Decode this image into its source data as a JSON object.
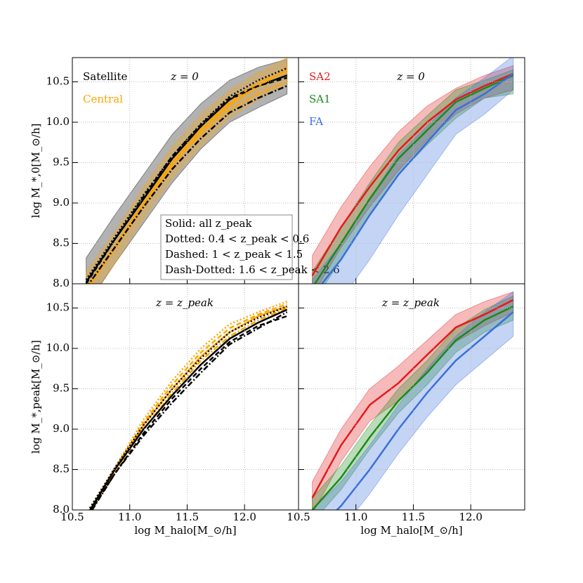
{
  "chart_data": [
    {
      "type": "line",
      "annotation": "z = 0",
      "ylabel": "log M_*,0[M_⊙/h]",
      "xlim": [
        10.5,
        12.47
      ],
      "ylim": [
        8.0,
        10.8
      ],
      "xticks": [
        10.5,
        {
          "value": 11,
          "label": "11.0"
        },
        11.5,
        {
          "value": 12,
          "label": "12.0"
        }
      ],
      "xtick_labels": false,
      "yticks": [
        {
          "value": 8,
          "label": "8.0"
        },
        8.5,
        {
          "value": 9,
          "label": "9.0"
        },
        9.5,
        {
          "value": 10,
          "label": "10.0"
        },
        10.5
      ],
      "grid": true,
      "x": [
        10.62,
        10.87,
        11.12,
        11.37,
        11.62,
        11.87,
        12.12,
        12.37
      ],
      "style_legend": [
        "Solid: all z_peak",
        "Dotted: 0.4 < z_peak < 0.6",
        "Dashed: 1 < z_peak < 1.5",
        "Dash-Dotted: 1.6 < z_peak < 2.6"
      ],
      "series": [
        {
          "name": "Satellite",
          "color": "#000000",
          "linestyle": "solid",
          "values": [
            8.02,
            8.55,
            9.05,
            9.55,
            9.95,
            10.28,
            10.45,
            10.58
          ],
          "lower": [
            7.72,
            8.25,
            8.75,
            9.25,
            9.67,
            10.0,
            10.18,
            10.35
          ],
          "upper": [
            8.32,
            8.85,
            9.35,
            9.85,
            10.23,
            10.52,
            10.68,
            10.78
          ]
        },
        {
          "name": "Central",
          "color": "#ffa500",
          "linestyle": "solid",
          "values": [
            7.95,
            8.45,
            9.0,
            9.5,
            9.9,
            10.22,
            10.45,
            10.65
          ],
          "lower": [
            7.75,
            8.25,
            8.8,
            9.3,
            9.7,
            10.05,
            10.28,
            10.48
          ],
          "upper": [
            8.15,
            8.65,
            9.2,
            9.7,
            10.1,
            10.4,
            10.62,
            10.8
          ]
        },
        {
          "color": "#ffa500",
          "linestyle": "dotted",
          "values": [
            7.9,
            8.42,
            8.95,
            9.45,
            9.88,
            10.2,
            10.48,
            10.7
          ]
        },
        {
          "color": "#ffa500",
          "linestyle": "dashed",
          "values": [
            7.93,
            8.47,
            9.0,
            9.5,
            9.92,
            10.25,
            10.5,
            10.62
          ]
        },
        {
          "color": "#ffa500",
          "linestyle": "dashdot",
          "values": [
            7.95,
            8.45,
            8.98,
            9.47,
            9.85,
            10.15,
            10.35,
            10.5
          ]
        },
        {
          "color": "#000000",
          "linestyle": "dotted",
          "values": [
            8.05,
            8.58,
            9.1,
            9.58,
            9.98,
            10.32,
            10.52,
            10.67
          ]
        },
        {
          "color": "#000000",
          "linestyle": "dashed",
          "values": [
            8.0,
            8.55,
            9.08,
            9.58,
            9.97,
            10.3,
            10.45,
            10.55
          ]
        },
        {
          "color": "#000000",
          "linestyle": "dashdot",
          "values": [
            7.95,
            8.45,
            8.95,
            9.42,
            9.8,
            10.12,
            10.3,
            10.45
          ]
        }
      ]
    },
    {
      "type": "line",
      "annotation": "z = 0",
      "xlim": [
        10.5,
        12.47
      ],
      "ylim": [
        8.0,
        10.8
      ],
      "xticks": [
        10.5,
        {
          "value": 11,
          "label": "11.0"
        },
        11.5,
        {
          "value": 12,
          "label": "12.0"
        }
      ],
      "xtick_labels": false,
      "yticks": [
        8,
        8.5,
        9,
        9.5,
        10,
        10.5
      ],
      "ytick_labels": false,
      "grid": true,
      "x": [
        10.62,
        10.87,
        11.12,
        11.37,
        11.62,
        11.87,
        12.12,
        12.37
      ],
      "series": [
        {
          "name": "SA2",
          "color": "#e41a1c",
          "linestyle": "solid",
          "values": [
            8.1,
            8.7,
            9.2,
            9.65,
            10.0,
            10.28,
            10.45,
            10.6
          ],
          "lower": [
            7.85,
            8.45,
            8.95,
            9.4,
            9.78,
            10.1,
            10.3,
            10.4
          ],
          "upper": [
            8.35,
            8.95,
            9.45,
            9.88,
            10.2,
            10.42,
            10.58,
            10.7
          ]
        },
        {
          "name": "SA1",
          "color": "#1a8a1a",
          "linestyle": "solid",
          "values": [
            7.95,
            8.5,
            9.05,
            9.55,
            9.9,
            10.25,
            10.42,
            10.58
          ],
          "lower": [
            7.75,
            8.3,
            8.85,
            9.35,
            9.72,
            10.05,
            10.3,
            10.35
          ],
          "upper": [
            8.15,
            8.7,
            9.25,
            9.75,
            10.08,
            10.4,
            10.52,
            10.65
          ]
        },
        {
          "name": "FA",
          "color": "#3a6fdc",
          "linestyle": "solid",
          "values": [
            7.85,
            8.3,
            8.85,
            9.35,
            9.75,
            10.15,
            10.35,
            10.6
          ],
          "lower": [
            7.4,
            7.8,
            8.3,
            8.85,
            9.35,
            9.85,
            10.1,
            10.4
          ],
          "upper": [
            8.05,
            8.5,
            9.05,
            9.6,
            9.95,
            10.3,
            10.55,
            10.82
          ]
        }
      ]
    },
    {
      "type": "line",
      "annotation": "z = z_peak",
      "ylabel": "log M_*,peak[M_⊙/h]",
      "xlabel": "log M_halo[M_⊙/h]",
      "xlim": [
        10.5,
        12.47
      ],
      "ylim": [
        8.0,
        10.8
      ],
      "xticks": [
        10.5,
        {
          "value": 11,
          "label": "11.0"
        },
        11.5,
        {
          "value": 12,
          "label": "12.0"
        }
      ],
      "yticks": [
        {
          "value": 8,
          "label": "8.0"
        },
        8.5,
        {
          "value": 9,
          "label": "9.0"
        },
        9.5,
        {
          "value": 10,
          "label": "10.0"
        },
        10.5
      ],
      "grid": true,
      "x": [
        10.62,
        10.87,
        11.12,
        11.37,
        11.62,
        11.87,
        12.12,
        12.37
      ],
      "series": [
        {
          "color": "#ffa500",
          "linestyle": "solid",
          "values": [
            7.9,
            8.5,
            9.05,
            9.5,
            9.9,
            10.2,
            10.4,
            10.52
          ]
        },
        {
          "color": "#ffa500",
          "linestyle": "dotted",
          "values": [
            7.92,
            8.52,
            9.12,
            9.6,
            10.0,
            10.3,
            10.45,
            10.58
          ]
        },
        {
          "color": "#ffa500",
          "linestyle": "dashed",
          "values": [
            7.9,
            8.5,
            9.08,
            9.55,
            9.95,
            10.25,
            10.42,
            10.55
          ]
        },
        {
          "color": "#ffa500",
          "linestyle": "dashdot",
          "values": [
            7.88,
            8.48,
            9.0,
            9.45,
            9.85,
            10.15,
            10.35,
            10.5
          ]
        },
        {
          "color": "#000000",
          "linestyle": "solid",
          "values": [
            7.92,
            8.5,
            9.0,
            9.42,
            9.8,
            10.12,
            10.32,
            10.48
          ]
        },
        {
          "color": "#000000",
          "linestyle": "dotted",
          "values": [
            7.95,
            8.52,
            9.05,
            9.5,
            9.88,
            10.2,
            10.38,
            10.52
          ]
        },
        {
          "color": "#000000",
          "linestyle": "dashed",
          "values": [
            7.9,
            8.45,
            8.95,
            9.38,
            9.75,
            10.08,
            10.28,
            10.4
          ]
        },
        {
          "color": "#000000",
          "linestyle": "dashdot",
          "values": [
            7.88,
            8.45,
            8.92,
            9.33,
            9.7,
            10.05,
            10.25,
            10.45
          ]
        }
      ]
    },
    {
      "type": "line",
      "annotation": "z = z_peak",
      "xlabel": "log M_halo[M_⊙/h]",
      "xlim": [
        10.5,
        12.47
      ],
      "ylim": [
        8.0,
        10.8
      ],
      "xticks": [
        10.5,
        {
          "value": 11,
          "label": "11.0"
        },
        11.5,
        {
          "value": 12,
          "label": "12.0"
        }
      ],
      "yticks": [
        8,
        8.5,
        9,
        9.5,
        10,
        10.5
      ],
      "ytick_labels": false,
      "grid": true,
      "x": [
        10.62,
        10.87,
        11.12,
        11.37,
        11.62,
        11.87,
        12.12,
        12.37
      ],
      "series": [
        {
          "color": "#e41a1c",
          "linestyle": "solid",
          "values": [
            8.15,
            8.8,
            9.3,
            9.57,
            9.92,
            10.26,
            10.42,
            10.6
          ],
          "lower": [
            7.95,
            8.6,
            9.1,
            9.35,
            9.72,
            10.08,
            10.28,
            10.45
          ],
          "upper": [
            8.35,
            9.0,
            9.5,
            9.78,
            10.1,
            10.42,
            10.58,
            10.7
          ]
        },
        {
          "color": "#1a8a1a",
          "linestyle": "solid",
          "values": [
            8.0,
            8.4,
            8.9,
            9.35,
            9.7,
            10.1,
            10.35,
            10.52
          ],
          "lower": [
            7.85,
            8.25,
            8.75,
            9.2,
            9.55,
            9.95,
            10.2,
            10.35
          ],
          "upper": [
            8.15,
            8.55,
            9.05,
            9.5,
            9.85,
            10.25,
            10.48,
            10.65
          ]
        },
        {
          "color": "#3a6fdc",
          "linestyle": "solid",
          "values": [
            7.7,
            8.05,
            8.5,
            9.0,
            9.45,
            9.85,
            10.15,
            10.45
          ],
          "lower": [
            7.4,
            7.75,
            8.2,
            8.7,
            9.15,
            9.55,
            9.85,
            10.15
          ],
          "upper": [
            8.0,
            8.35,
            8.8,
            9.3,
            9.75,
            10.15,
            10.45,
            10.7
          ]
        }
      ]
    }
  ]
}
